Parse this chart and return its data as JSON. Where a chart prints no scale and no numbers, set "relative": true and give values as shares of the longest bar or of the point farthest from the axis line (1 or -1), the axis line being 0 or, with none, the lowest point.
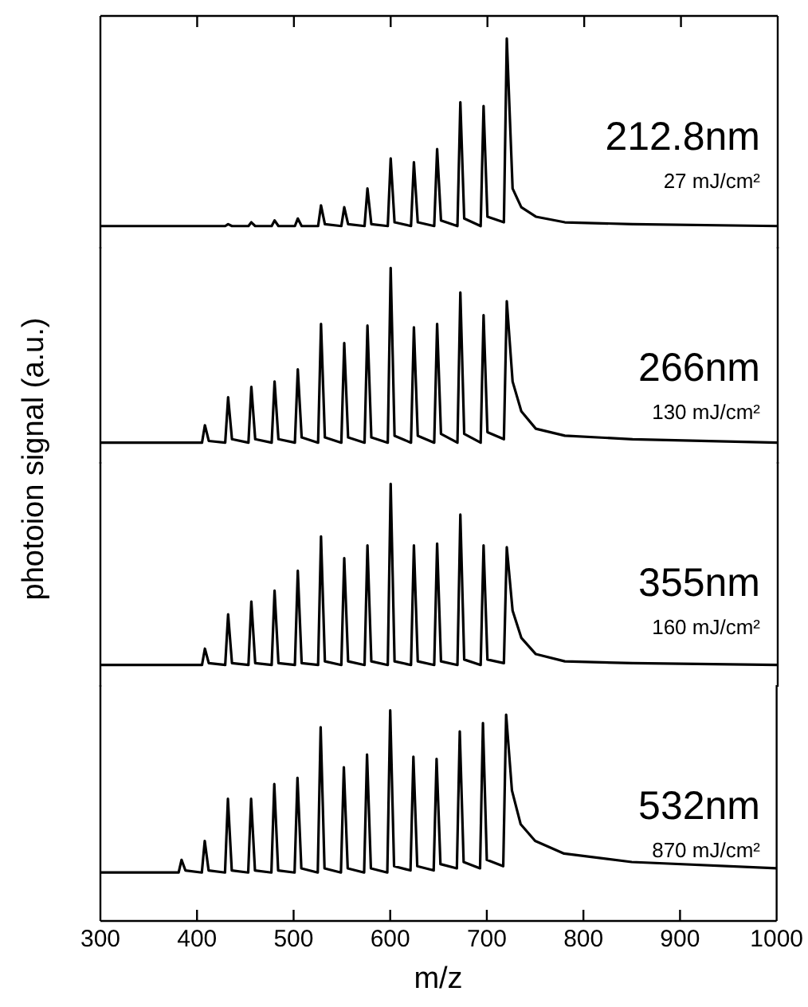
{
  "chart_data": [
    {
      "type": "line",
      "ylabel": "photoion signal (a.u.)",
      "relative": true,
      "tick_labels": false,
      "marker": "none",
      "line_style": "solid",
      "xlim": [
        300,
        1000
      ],
      "xticks": [
        300,
        400,
        500,
        600,
        700,
        800,
        900,
        1000
      ],
      "annotations": [
        "212.8nm",
        "27 mJ/cm²"
      ],
      "series": [
        {
          "color": "#000000",
          "x": [
            300,
            429,
            432,
            436,
            453,
            456,
            460,
            477,
            480,
            484,
            501,
            504,
            508,
            525,
            528,
            532,
            549,
            552,
            556,
            573,
            576,
            580,
            597,
            600,
            604,
            621,
            624,
            628,
            645,
            648,
            652,
            669,
            672,
            676,
            693,
            696,
            700,
            717,
            720,
            726,
            735,
            750,
            780,
            850,
            1000
          ],
          "values": [
            0,
            0,
            0.01,
            0,
            0,
            0.02,
            0,
            0,
            0.03,
            0,
            0,
            0.04,
            0,
            0,
            0.11,
            0.01,
            0,
            0.1,
            0.01,
            0,
            0.2,
            0.01,
            0,
            0.36,
            0.02,
            0,
            0.34,
            0.02,
            0,
            0.41,
            0.03,
            0,
            0.66,
            0.04,
            0,
            0.64,
            0.05,
            0.02,
            1,
            0.2,
            0.1,
            0.05,
            0.02,
            0.01,
            0
          ]
        }
      ]
    },
    {
      "type": "line",
      "relative": true,
      "tick_labels": false,
      "marker": "none",
      "line_style": "solid",
      "xlim": [
        300,
        1000
      ],
      "xticks": [
        300,
        400,
        500,
        600,
        700,
        800,
        900,
        1000
      ],
      "annotations": [
        "266nm",
        "130 mJ/cm²"
      ],
      "series": [
        {
          "color": "#000000",
          "x": [
            300,
            405,
            408,
            412,
            429,
            432,
            436,
            453,
            456,
            460,
            477,
            480,
            484,
            501,
            504,
            508,
            525,
            528,
            532,
            549,
            552,
            556,
            573,
            576,
            580,
            597,
            600,
            604,
            621,
            624,
            628,
            645,
            648,
            652,
            669,
            672,
            676,
            693,
            696,
            700,
            717,
            720,
            726,
            735,
            750,
            780,
            850,
            1000
          ],
          "values": [
            0,
            0,
            0.1,
            0.01,
            0,
            0.26,
            0.02,
            0,
            0.32,
            0.02,
            0,
            0.35,
            0.02,
            0,
            0.42,
            0.03,
            0,
            0.68,
            0.03,
            0,
            0.57,
            0.03,
            0,
            0.67,
            0.03,
            0,
            1,
            0.04,
            0,
            0.66,
            0.04,
            0,
            0.68,
            0.05,
            0,
            0.86,
            0.05,
            0,
            0.73,
            0.06,
            0.02,
            0.81,
            0.35,
            0.18,
            0.08,
            0.04,
            0.02,
            0
          ]
        }
      ]
    },
    {
      "type": "line",
      "relative": true,
      "tick_labels": false,
      "marker": "none",
      "line_style": "solid",
      "xlim": [
        300,
        1000
      ],
      "xticks": [
        300,
        400,
        500,
        600,
        700,
        800,
        900,
        1000
      ],
      "annotations": [
        "355nm",
        "160 mJ/cm²"
      ],
      "series": [
        {
          "color": "#000000",
          "x": [
            300,
            405,
            408,
            412,
            429,
            432,
            436,
            453,
            456,
            460,
            477,
            480,
            484,
            501,
            504,
            508,
            525,
            528,
            532,
            549,
            552,
            556,
            573,
            576,
            580,
            597,
            600,
            604,
            621,
            624,
            628,
            645,
            648,
            652,
            669,
            672,
            676,
            693,
            696,
            700,
            717,
            720,
            726,
            735,
            750,
            780,
            850,
            1000
          ],
          "values": [
            0,
            0,
            0.09,
            0.01,
            0,
            0.28,
            0.01,
            0,
            0.35,
            0.01,
            0,
            0.41,
            0.01,
            0,
            0.52,
            0.01,
            0,
            0.71,
            0.02,
            0,
            0.59,
            0.02,
            0,
            0.66,
            0.02,
            0,
            1,
            0.02,
            0,
            0.66,
            0.02,
            0,
            0.67,
            0.02,
            0,
            0.83,
            0.03,
            0,
            0.66,
            0.03,
            0.01,
            0.65,
            0.3,
            0.15,
            0.06,
            0.02,
            0.01,
            0
          ]
        }
      ]
    },
    {
      "type": "line",
      "xlabel": "m/z",
      "relative": true,
      "tick_labels": "x",
      "marker": "none",
      "line_style": "solid",
      "xlim": [
        300,
        1000
      ],
      "xticks": [
        300,
        400,
        500,
        600,
        700,
        800,
        900,
        1000
      ],
      "annotations": [
        "532nm",
        "870 mJ/cm²"
      ],
      "series": [
        {
          "color": "#000000",
          "x": [
            300,
            381,
            384,
            388,
            405,
            408,
            412,
            429,
            432,
            436,
            453,
            456,
            460,
            477,
            480,
            484,
            501,
            504,
            508,
            525,
            528,
            532,
            549,
            552,
            556,
            573,
            576,
            580,
            597,
            600,
            604,
            621,
            624,
            628,
            645,
            648,
            652,
            669,
            672,
            676,
            693,
            696,
            700,
            717,
            720,
            726,
            735,
            750,
            780,
            850,
            1000
          ],
          "values": [
            0.23,
            0.23,
            0.29,
            0.24,
            0.23,
            0.38,
            0.24,
            0.23,
            0.58,
            0.24,
            0.23,
            0.58,
            0.24,
            0.23,
            0.65,
            0.24,
            0.23,
            0.68,
            0.25,
            0.23,
            0.92,
            0.25,
            0.23,
            0.73,
            0.25,
            0.23,
            0.79,
            0.25,
            0.23,
            1,
            0.26,
            0.24,
            0.78,
            0.26,
            0.24,
            0.77,
            0.27,
            0.25,
            0.9,
            0.28,
            0.25,
            0.94,
            0.29,
            0.26,
            0.98,
            0.62,
            0.46,
            0.38,
            0.32,
            0.28,
            0.25
          ]
        }
      ]
    }
  ]
}
